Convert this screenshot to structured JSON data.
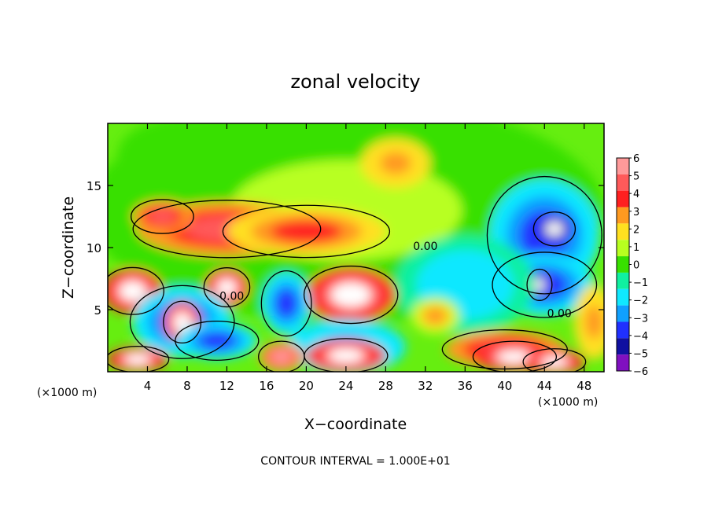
{
  "chart_data": {
    "type": "heatmap",
    "title": "zonal velocity",
    "xlabel": "X−coordinate",
    "ylabel": "Z−coordinate",
    "x_unit": "(×1000 m)",
    "x_unit_right": "(×1000 m)",
    "xlim": [
      0,
      50
    ],
    "ylim": [
      0,
      20
    ],
    "x_ticks": [
      4,
      8,
      12,
      16,
      20,
      24,
      28,
      32,
      36,
      40,
      44,
      48
    ],
    "y_ticks": [
      5,
      10,
      15
    ],
    "colorbar": {
      "levels": [
        6,
        5,
        4,
        3,
        2,
        1,
        0,
        -1,
        -2,
        -3,
        -4,
        -5,
        -6
      ],
      "labels": [
        "6",
        "5",
        "4",
        "3",
        "2",
        "1",
        "0",
        "−1",
        "−2",
        "−3",
        "−4",
        "−5",
        "−6"
      ],
      "colors": [
        "#ff9a9a",
        "#ff5a5a",
        "#ff2020",
        "#ff9a20",
        "#ffe020",
        "#b8ff20",
        "#38e000",
        "#10f0a0",
        "#10e8ff",
        "#10a0ff",
        "#2030ff",
        "#1010a0",
        "#8010c0"
      ]
    },
    "contour_labels": [
      "0.00",
      "0.00",
      "0.00"
    ],
    "footer": "CONTOUR INTERVAL = 1.000E+01",
    "field_blobs": [
      {
        "x": 24,
        "z": 13,
        "rx": 26,
        "rz": 9,
        "v": 0.5
      },
      {
        "x": 8,
        "z": 17.5,
        "rx": 7,
        "rz": 3,
        "v": 0.2
      },
      {
        "x": 29,
        "z": 16.8,
        "rx": 3.5,
        "rz": 2,
        "v": 2.8
      },
      {
        "x": 12,
        "z": 11.5,
        "rx": 9,
        "rz": 2.2,
        "v": 4.6
      },
      {
        "x": 20,
        "z": 11.3,
        "rx": 8,
        "rz": 2,
        "v": 4.2
      },
      {
        "x": 5.5,
        "z": 12.5,
        "rx": 3,
        "rz": 1.3,
        "v": 4.8
      },
      {
        "x": 44,
        "z": 11,
        "rx": 5.5,
        "rz": 4.5,
        "v": -4.3
      },
      {
        "x": 45,
        "z": 11.5,
        "rx": 2,
        "rz": 1.3,
        "v": -7
      },
      {
        "x": 44,
        "z": 7,
        "rx": 5,
        "rz": 2.5,
        "v": -4
      },
      {
        "x": 43.5,
        "z": 7,
        "rx": 1.2,
        "rz": 1.2,
        "v": -7
      },
      {
        "x": 36,
        "z": 7,
        "rx": 7,
        "rz": 4,
        "v": -2
      },
      {
        "x": 2.5,
        "z": 6.5,
        "rx": 3,
        "rz": 1.8,
        "v": 6.8
      },
      {
        "x": 12,
        "z": 6.8,
        "rx": 2.2,
        "rz": 1.5,
        "v": 6.8
      },
      {
        "x": 24.5,
        "z": 6.2,
        "rx": 4.5,
        "rz": 2.2,
        "v": 7
      },
      {
        "x": 7.5,
        "z": 4,
        "rx": 5,
        "rz": 2.8,
        "v": -4.5
      },
      {
        "x": 7.5,
        "z": 4,
        "rx": 1.8,
        "rz": 1.6,
        "v": 8
      },
      {
        "x": 18,
        "z": 5.5,
        "rx": 2.4,
        "rz": 2.5,
        "v": -4.5
      },
      {
        "x": 11,
        "z": 2.5,
        "rx": 4,
        "rz": 1.5,
        "v": -4
      },
      {
        "x": 24,
        "z": 2,
        "rx": 6,
        "rz": 2.2,
        "v": -3
      },
      {
        "x": 24,
        "z": 1.3,
        "rx": 4,
        "rz": 1.3,
        "v": 7
      },
      {
        "x": 3,
        "z": 1,
        "rx": 3,
        "rz": 1,
        "v": 6.5
      },
      {
        "x": 17.5,
        "z": 1.2,
        "rx": 2.2,
        "rz": 1.2,
        "v": 6
      },
      {
        "x": 40,
        "z": 1.8,
        "rx": 6,
        "rz": 1.5,
        "v": 5
      },
      {
        "x": 41,
        "z": 1.2,
        "rx": 4,
        "rz": 1.2,
        "v": 7
      },
      {
        "x": 45,
        "z": 0.8,
        "rx": 3,
        "rz": 1,
        "v": 7
      },
      {
        "x": 49,
        "z": 4,
        "rx": 2,
        "rz": 3,
        "v": 3
      },
      {
        "x": 33,
        "z": 4.5,
        "rx": 2.5,
        "rz": 1.5,
        "v": 2.5
      }
    ]
  }
}
